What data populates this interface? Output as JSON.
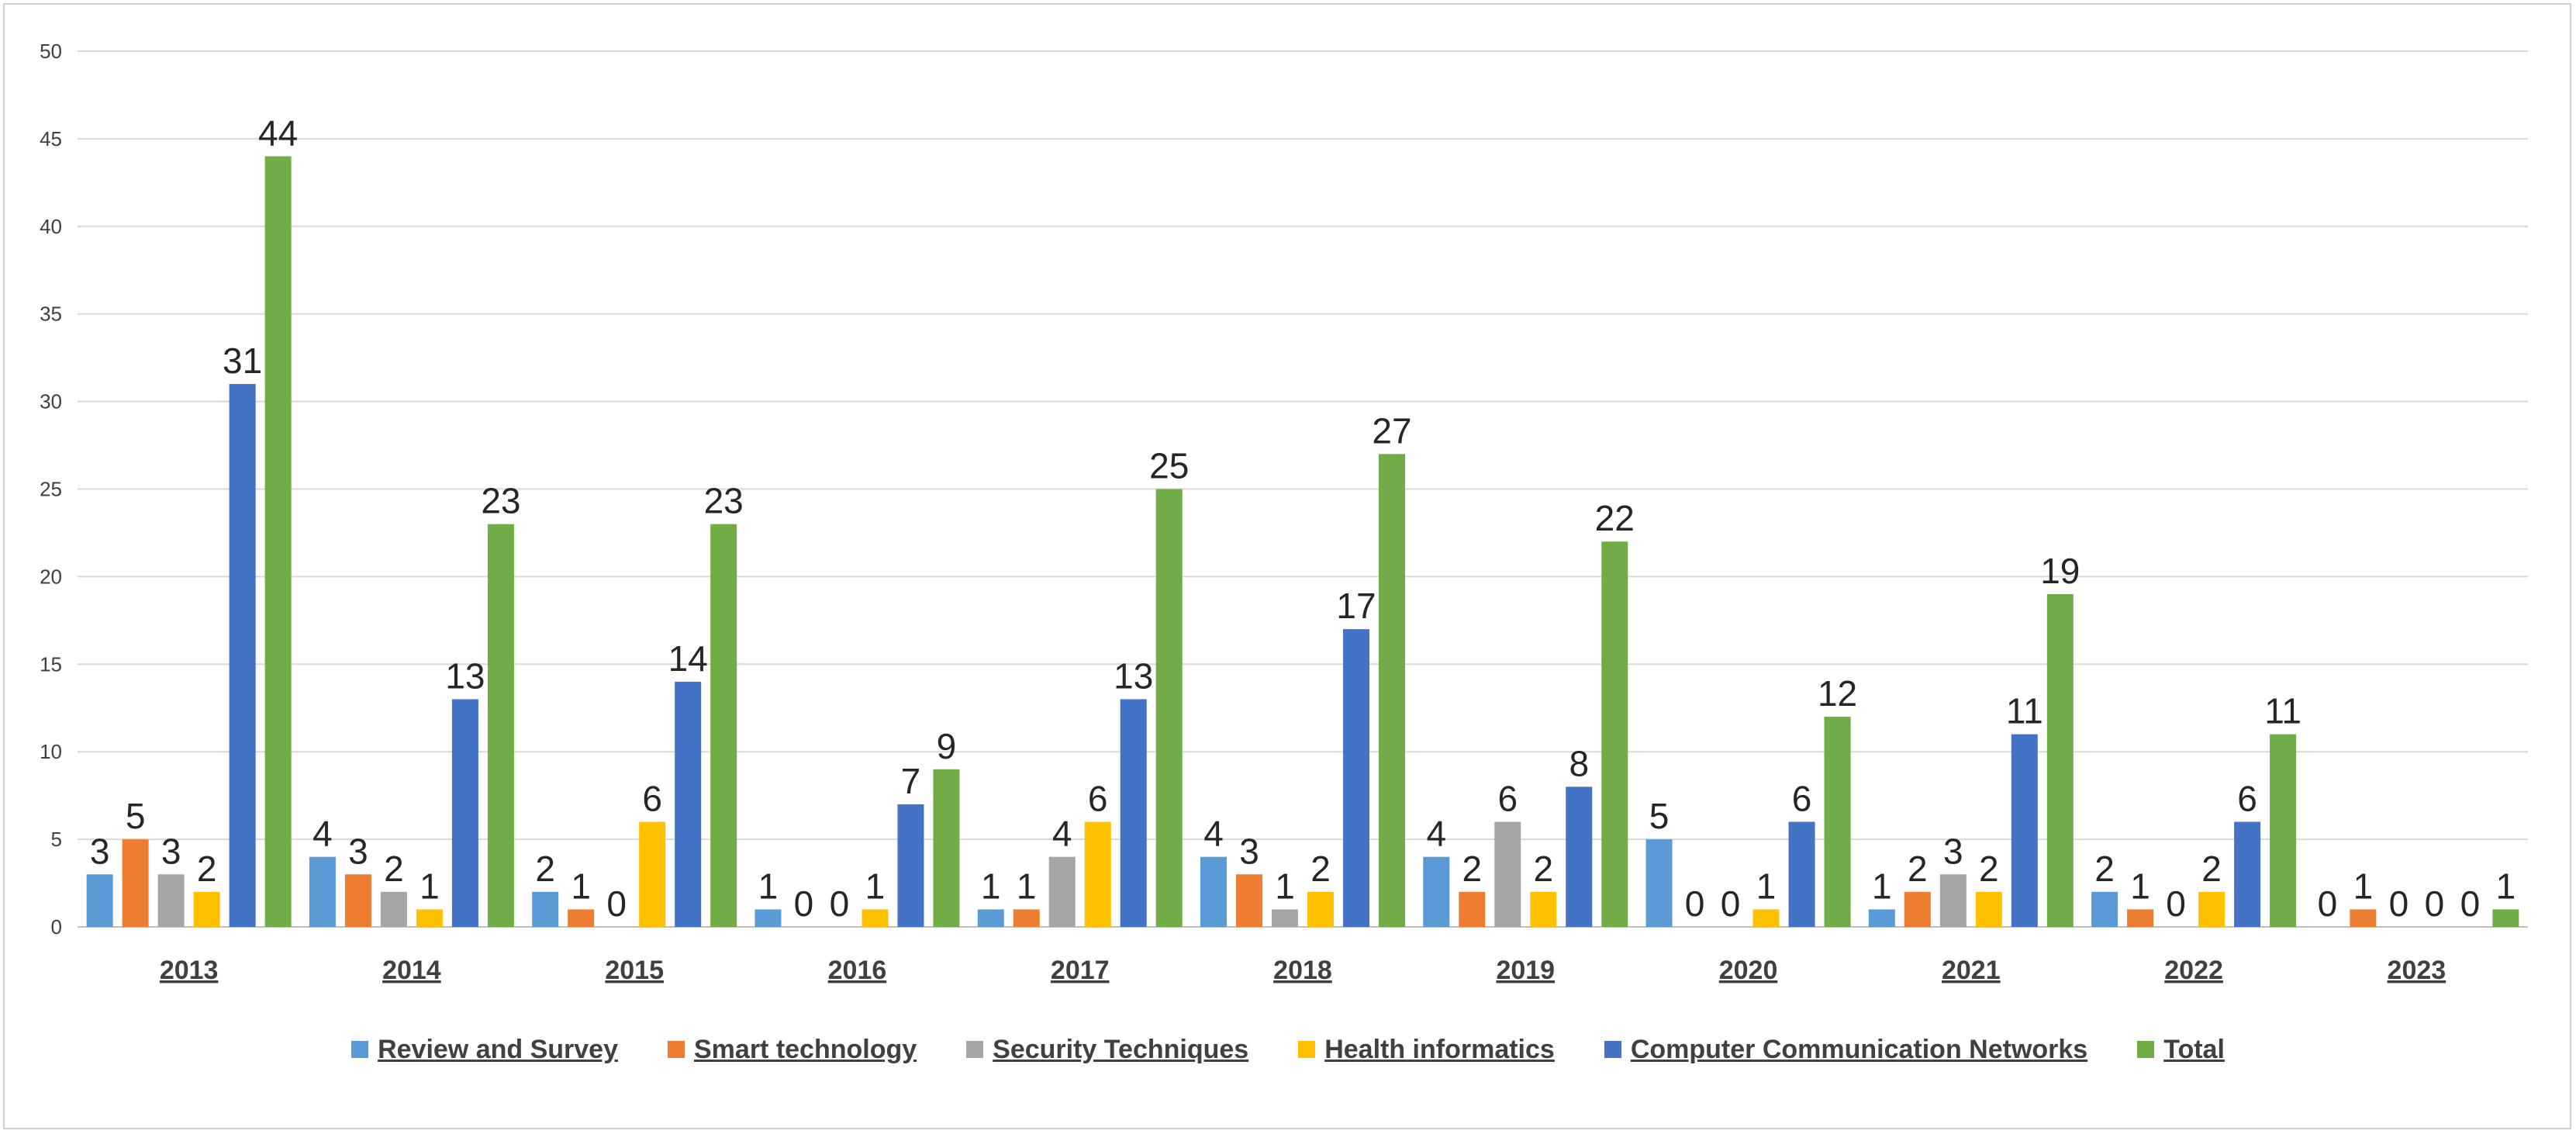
{
  "chart_data": {
    "type": "bar",
    "title": "",
    "xlabel": "",
    "ylabel": "",
    "ylim": [
      0,
      50
    ],
    "yticks": [
      0,
      5,
      10,
      15,
      20,
      25,
      30,
      35,
      40,
      45,
      50
    ],
    "grid": true,
    "legend_position": "bottom",
    "categories": [
      "2013",
      "2014",
      "2015",
      "2016",
      "2017",
      "2018",
      "2019",
      "2020",
      "2021",
      "2022",
      "2023"
    ],
    "series": [
      {
        "name": "Review and Survey",
        "color": "#5B9BD5",
        "values": [
          3,
          4,
          2,
          1,
          1,
          4,
          4,
          5,
          1,
          2,
          0
        ]
      },
      {
        "name": "Smart technology",
        "color": "#ED7D31",
        "values": [
          5,
          3,
          1,
          0,
          1,
          3,
          2,
          0,
          2,
          1,
          1
        ]
      },
      {
        "name": "Security Techniques",
        "color": "#A5A5A5",
        "values": [
          3,
          2,
          0,
          0,
          4,
          1,
          6,
          0,
          3,
          0,
          0
        ]
      },
      {
        "name": "Health informatics",
        "color": "#FFC000",
        "values": [
          2,
          1,
          6,
          1,
          6,
          2,
          2,
          1,
          2,
          2,
          0
        ]
      },
      {
        "name": "Computer Communication Networks",
        "color": "#4472C4",
        "values": [
          31,
          13,
          14,
          7,
          13,
          17,
          8,
          6,
          11,
          6,
          0
        ]
      },
      {
        "name": "Total",
        "color": "#70AD47",
        "values": [
          44,
          23,
          23,
          9,
          25,
          27,
          22,
          12,
          19,
          11,
          1
        ]
      }
    ]
  }
}
